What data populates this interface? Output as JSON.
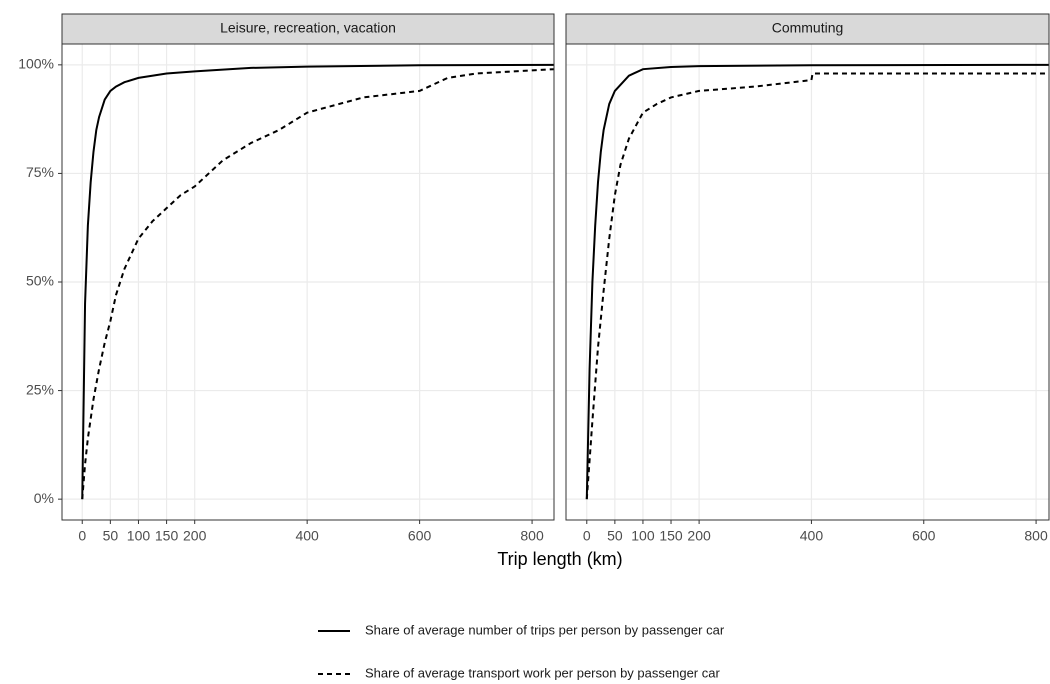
{
  "axes": {
    "x_label": "Trip length (km)",
    "ylim": [
      -4.8,
      104.8
    ],
    "yticks": [
      {
        "value": 0,
        "label": "0%"
      },
      {
        "value": 25,
        "label": "25%"
      },
      {
        "value": 50,
        "label": "50%"
      },
      {
        "value": 75,
        "label": "75%"
      },
      {
        "value": 100,
        "label": "100%"
      }
    ],
    "xticks": [
      0,
      50,
      100,
      150,
      200,
      400,
      600,
      800
    ],
    "grid": true
  },
  "chart_data": [
    {
      "type": "line",
      "title": "Leisure, recreation, vacation",
      "xlim": [
        -36,
        839
      ],
      "series": [
        {
          "name": "Share of average number of trips per person by passenger car",
          "color": "#000000",
          "dash": "solid",
          "x": [
            0,
            5,
            10,
            15,
            20,
            25,
            30,
            40,
            50,
            60,
            75,
            100,
            150,
            200,
            300,
            400,
            600,
            839
          ],
          "values": [
            0,
            45,
            63,
            73,
            80,
            85,
            88,
            92,
            94,
            95,
            96,
            97,
            98,
            98.5,
            99.3,
            99.6,
            99.9,
            100
          ]
        },
        {
          "name": "Share of average transport work per person by passenger car",
          "color": "#000000",
          "dash": "dashed",
          "x": [
            0,
            5,
            10,
            20,
            30,
            40,
            50,
            60,
            75,
            100,
            125,
            150,
            175,
            200,
            250,
            300,
            350,
            400,
            500,
            600,
            650,
            700,
            839
          ],
          "values": [
            0,
            8,
            14,
            23,
            30,
            36,
            41,
            47,
            53,
            60,
            64,
            67,
            70,
            72,
            78,
            82,
            85,
            89,
            92.5,
            94,
            97,
            98,
            99
          ]
        }
      ]
    },
    {
      "type": "line",
      "title": "Commuting",
      "xlim": [
        -37,
        823
      ],
      "series": [
        {
          "color": "#000000",
          "dash": "solid",
          "x": [
            0,
            5,
            10,
            15,
            20,
            25,
            30,
            40,
            50,
            75,
            100,
            150,
            200,
            400,
            823
          ],
          "values": [
            0,
            30,
            50,
            63,
            73,
            80,
            85,
            91,
            94,
            97.5,
            99,
            99.5,
            99.7,
            99.9,
            100
          ]
        },
        {
          "color": "#000000",
          "dash": "dashed",
          "x": [
            0,
            10,
            20,
            30,
            40,
            50,
            60,
            75,
            100,
            125,
            150,
            200,
            300,
            400,
            402,
            823
          ],
          "values": [
            0,
            18,
            35,
            48,
            60,
            70,
            77,
            83,
            89,
            91,
            92.5,
            94,
            95,
            96.5,
            98,
            98
          ]
        }
      ]
    }
  ]
}
